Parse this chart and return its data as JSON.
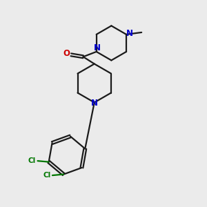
{
  "bg_color": "#ebebeb",
  "bond_color": "#1a1a1a",
  "N_color": "#0000cc",
  "O_color": "#cc0000",
  "Cl_color": "#007700",
  "line_width": 1.6,
  "figsize": [
    3.0,
    3.0
  ],
  "dpi": 100,
  "xlim": [
    0,
    10
  ],
  "ylim": [
    0,
    10
  ]
}
